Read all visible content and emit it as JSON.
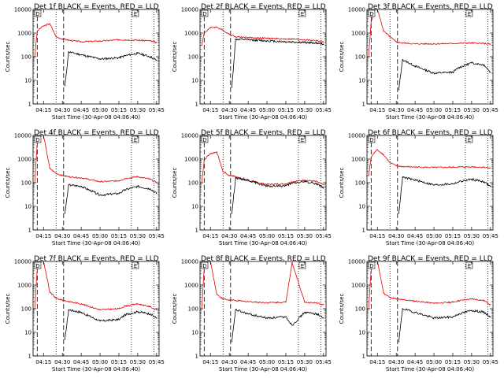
{
  "chart_data": {
    "type": "line",
    "y_scale": "log",
    "ylim": [
      1,
      10000
    ],
    "y_tick_labels": [
      "1",
      "10",
      "100",
      "1000",
      "10000"
    ],
    "x_tick_labels": [
      "04:15",
      "04:30",
      "04:45",
      "05:00",
      "05:15",
      "05:30",
      "05:45"
    ],
    "xlabel": "Start Time (30-Apr-08 04:06:40)",
    "ylabel": "Counts/sec",
    "legend": "none",
    "grid": false,
    "series_colors": {
      "events": "#000000",
      "lld": "#e00000"
    },
    "panels": [
      {
        "title": "Det 1f BLACK = Events, RED = LLD",
        "markers": [
          "D",
          "E"
        ],
        "x": [
          "04:08",
          "04:10",
          "04:13",
          "04:15",
          "04:20",
          "04:25",
          "04:30",
          "04:32",
          "04:35",
          "04:45",
          "05:00",
          "05:15",
          "05:20",
          "05:30",
          "05:40",
          "05:45"
        ],
        "lld": [
          100,
          1200,
          1700,
          2000,
          2500,
          700,
          560,
          560,
          500,
          430,
          460,
          520,
          520,
          500,
          470,
          400
        ],
        "events": [
          null,
          null,
          null,
          null,
          null,
          null,
          null,
          6,
          160,
          120,
          80,
          90,
          110,
          140,
          100,
          70
        ]
      },
      {
        "title": "Det 2f BLACK = Events, RED = LLD",
        "markers": [
          "D",
          "E"
        ],
        "x": [
          "04:08",
          "04:10",
          "04:13",
          "04:15",
          "04:20",
          "04:25",
          "04:30",
          "04:32",
          "04:35",
          "04:45",
          "05:00",
          "05:15",
          "05:20",
          "05:30",
          "05:40",
          "05:45"
        ],
        "lld": [
          300,
          1000,
          1400,
          1700,
          1800,
          1300,
          900,
          800,
          700,
          650,
          600,
          560,
          560,
          520,
          480,
          420
        ],
        "events": [
          null,
          null,
          null,
          null,
          null,
          null,
          null,
          5,
          540,
          520,
          470,
          430,
          420,
          400,
          380,
          340
        ]
      },
      {
        "title": "Det 3f BLACK = Events, RED = LLD",
        "markers": [
          "D",
          "E"
        ],
        "x": [
          "04:08",
          "04:10",
          "04:13",
          "04:15",
          "04:20",
          "04:25",
          "04:30",
          "04:32",
          "04:35",
          "04:45",
          "05:00",
          "05:15",
          "05:20",
          "05:30",
          "05:40",
          "05:45"
        ],
        "lld": [
          100,
          3000,
          10000,
          10000,
          1200,
          700,
          420,
          400,
          380,
          350,
          350,
          360,
          370,
          380,
          360,
          340
        ],
        "events": [
          null,
          null,
          null,
          null,
          null,
          null,
          null,
          4,
          75,
          40,
          20,
          22,
          35,
          55,
          45,
          22
        ]
      },
      {
        "title": "Det 4f BLACK = Events, RED = LLD",
        "markers": [
          "D",
          "E"
        ],
        "x": [
          "04:08",
          "04:10",
          "04:13",
          "04:15",
          "04:20",
          "04:25",
          "04:30",
          "04:32",
          "04:35",
          "04:45",
          "05:00",
          "05:15",
          "05:20",
          "05:30",
          "05:40",
          "05:45"
        ],
        "lld": [
          100,
          5000,
          10000,
          10000,
          400,
          250,
          200,
          190,
          180,
          160,
          110,
          120,
          150,
          180,
          140,
          100
        ],
        "events": [
          null,
          null,
          null,
          null,
          null,
          null,
          null,
          5,
          80,
          70,
          30,
          35,
          50,
          70,
          55,
          35
        ]
      },
      {
        "title": "Det 5f BLACK = Events, RED = LLD",
        "markers": [
          "D",
          "E"
        ],
        "x": [
          "04:08",
          "04:10",
          "04:13",
          "04:15",
          "04:20",
          "04:25",
          "04:30",
          "04:32",
          "04:35",
          "04:45",
          "05:00",
          "05:15",
          "05:20",
          "05:30",
          "05:40",
          "05:45"
        ],
        "lld": [
          100,
          900,
          1400,
          1700,
          2000,
          300,
          200,
          200,
          180,
          120,
          85,
          90,
          110,
          130,
          110,
          80
        ],
        "events": [
          null,
          null,
          null,
          null,
          null,
          null,
          null,
          5,
          160,
          130,
          70,
          75,
          95,
          110,
          90,
          60
        ]
      },
      {
        "title": "Det 6f BLACK = Events, RED = LLD",
        "markers": [
          "D",
          "E"
        ],
        "x": [
          "04:08",
          "04:10",
          "04:13",
          "04:15",
          "04:20",
          "04:25",
          "04:30",
          "04:32",
          "04:35",
          "04:45",
          "05:00",
          "05:15",
          "05:20",
          "05:30",
          "05:40",
          "05:45"
        ],
        "lld": [
          200,
          1200,
          2000,
          2500,
          1500,
          700,
          520,
          500,
          480,
          460,
          440,
          450,
          460,
          470,
          450,
          420
        ],
        "events": [
          null,
          null,
          null,
          null,
          null,
          null,
          null,
          5,
          170,
          130,
          80,
          90,
          110,
          140,
          110,
          70
        ]
      },
      {
        "title": "Det 7f BLACK = Events, RED = LLD",
        "markers": [
          "D",
          "E"
        ],
        "x": [
          "04:08",
          "04:10",
          "04:13",
          "04:15",
          "04:20",
          "04:25",
          "04:30",
          "04:32",
          "04:35",
          "04:45",
          "05:00",
          "05:15",
          "05:20",
          "05:30",
          "05:40",
          "05:45"
        ],
        "lld": [
          100,
          5000,
          10000,
          10000,
          500,
          280,
          230,
          220,
          200,
          160,
          90,
          100,
          130,
          160,
          120,
          90
        ],
        "events": [
          null,
          null,
          null,
          null,
          null,
          null,
          null,
          5,
          90,
          70,
          30,
          35,
          55,
          75,
          60,
          40
        ]
      },
      {
        "title": "Det 8f BLACK = Events, RED = LLD",
        "markers": [
          "D",
          "E"
        ],
        "x": [
          "04:08",
          "04:10",
          "04:13",
          "04:15",
          "04:20",
          "04:25",
          "04:30",
          "04:32",
          "04:35",
          "04:45",
          "05:00",
          "05:15",
          "05:20",
          "05:30",
          "05:40",
          "05:45"
        ],
        "lld": [
          100,
          5000,
          10000,
          10000,
          400,
          260,
          230,
          230,
          220,
          200,
          180,
          190,
          9000,
          190,
          170,
          150
        ],
        "events": [
          null,
          null,
          null,
          null,
          null,
          null,
          null,
          4,
          90,
          60,
          40,
          45,
          20,
          70,
          60,
          40
        ]
      },
      {
        "title": "Det 9f BLACK = Events, RED = LLD",
        "markers": [
          "D",
          "E"
        ],
        "x": [
          "04:08",
          "04:10",
          "04:13",
          "04:15",
          "04:20",
          "04:25",
          "04:30",
          "04:32",
          "04:35",
          "04:45",
          "05:00",
          "05:15",
          "05:20",
          "05:30",
          "05:40",
          "05:45"
        ],
        "lld": [
          100,
          5000,
          10000,
          10000,
          450,
          300,
          260,
          250,
          240,
          210,
          170,
          190,
          220,
          260,
          220,
          150
        ],
        "events": [
          null,
          null,
          null,
          null,
          null,
          null,
          null,
          4,
          100,
          70,
          40,
          45,
          60,
          85,
          70,
          45
        ]
      }
    ]
  }
}
